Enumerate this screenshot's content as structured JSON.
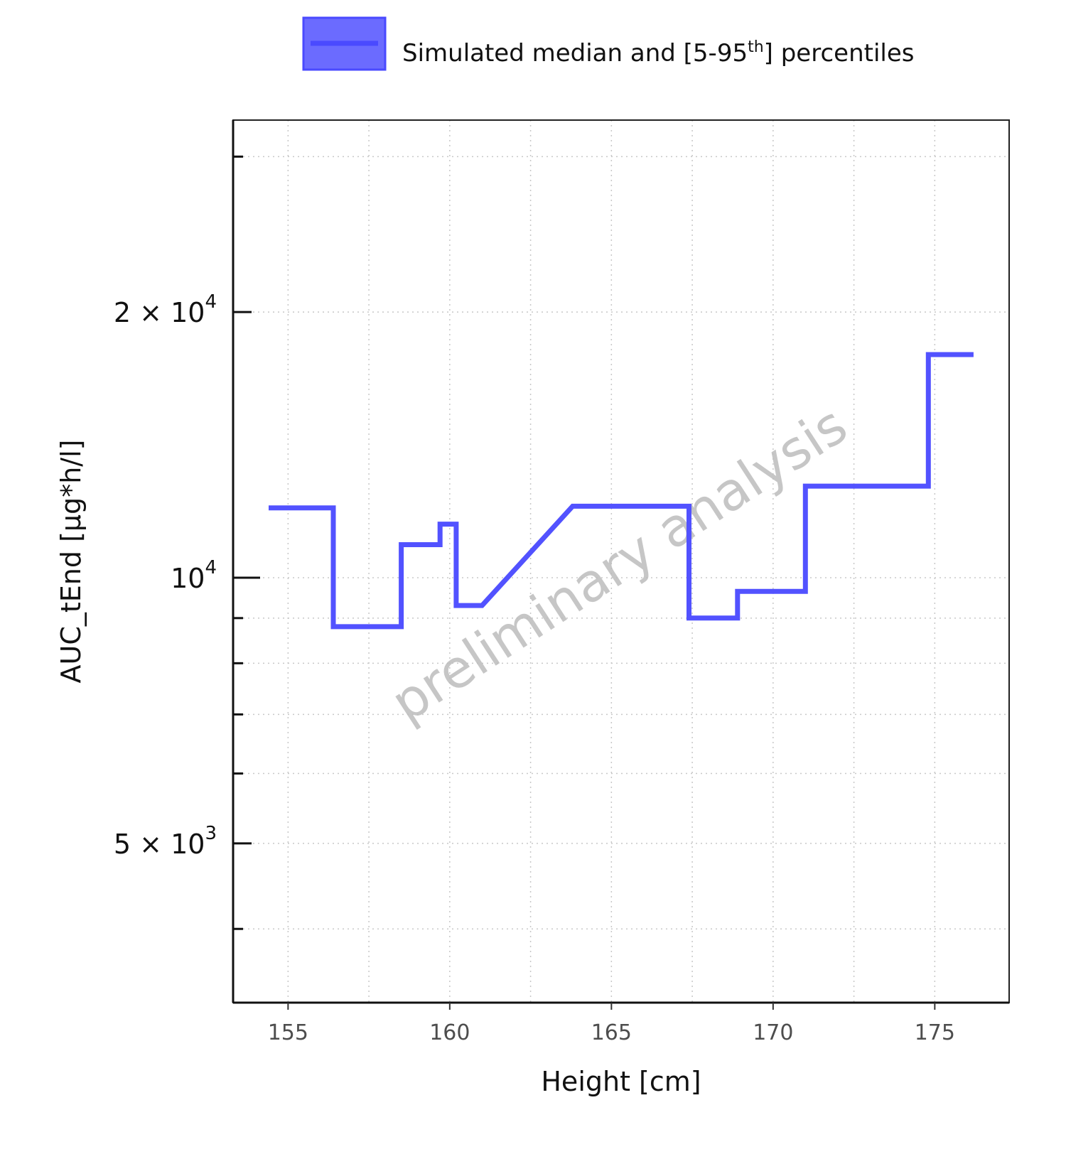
{
  "chart_data": {
    "type": "line",
    "xlabel": "Height [cm]",
    "ylabel": "AUC_tEnd [µg*h/l]",
    "xlim": [
      153.3,
      177.3
    ],
    "ylim": [
      3300,
      33000
    ],
    "y_scale": "log",
    "grid": true,
    "x_ticks": [
      {
        "value": 155,
        "label": "155"
      },
      {
        "value": 160,
        "label": "160"
      },
      {
        "value": 165,
        "label": "165"
      },
      {
        "value": 170,
        "label": "170"
      },
      {
        "value": 175,
        "label": "175"
      }
    ],
    "y_major_ticks": [
      {
        "value": 5000,
        "mantissa": "5",
        "times": "×",
        "base": "10",
        "exponent": "3"
      },
      {
        "value": 10000,
        "mantissa": "",
        "times": "",
        "base": "10",
        "exponent": "4"
      },
      {
        "value": 20000,
        "mantissa": "2",
        "times": "×",
        "base": "10",
        "exponent": "4"
      }
    ],
    "y_minor_ticks": [
      4000,
      6000,
      7000,
      8000,
      9000,
      30000
    ],
    "x_minor_grid": [
      157.5,
      162.5,
      167.5,
      172.5
    ],
    "legend": {
      "position": "top",
      "label_main": "Simulated median and [5-95",
      "label_sup": "th",
      "label_end": "] percentiles"
    },
    "series": [
      {
        "name": "Simulated median and [5-95th] percentiles",
        "color": "#5252ff",
        "x": [
          154.4,
          156.4,
          156.4,
          158.5,
          158.5,
          159.7,
          159.7,
          160.2,
          160.2,
          161.0,
          163.8,
          167.4,
          167.4,
          168.9,
          168.9,
          171.0,
          171.0,
          174.8,
          174.8,
          176.2
        ],
        "y": [
          12000,
          12000,
          8800,
          8800,
          10900,
          10900,
          11500,
          11500,
          9300,
          9300,
          12050,
          12050,
          9000,
          9000,
          9650,
          9650,
          12700,
          12700,
          17900,
          17900
        ]
      }
    ]
  },
  "watermark": "preliminary analysis"
}
